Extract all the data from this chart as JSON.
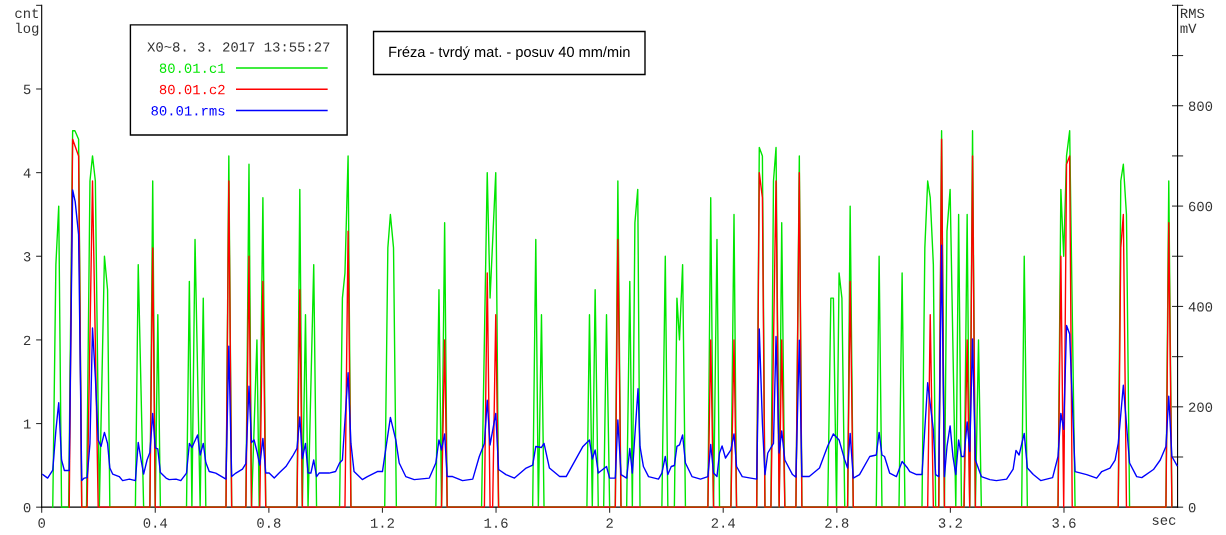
{
  "chart_data": {
    "type": "line",
    "title": "Fréza - tvrdý mat. - posuv 40 mm/min",
    "xlabel": "sec",
    "ylabel": "cnt\nlog",
    "y2label": "RMS\nmV",
    "legend_title": "X0~8. 3. 2017 13:55:27",
    "legend": "top left",
    "grid": false,
    "marker": "none",
    "line_style": "solid",
    "xlim": [
      0,
      4
    ],
    "xticks": [
      0,
      0.4,
      0.8,
      1.2,
      1.6,
      2,
      2.4,
      2.8,
      3.2,
      3.6
    ],
    "ylim": [
      0,
      6
    ],
    "yticks": [
      0,
      1,
      2,
      3,
      4,
      5,
      {
        "value": 6,
        "label": null
      }
    ],
    "y2lim": [
      0,
      1000
    ],
    "y2ticks": [
      0,
      {
        "value": 100,
        "label": null
      },
      200,
      {
        "value": 300,
        "label": null
      },
      400,
      {
        "value": 500,
        "label": null
      },
      600,
      {
        "value": 700,
        "label": null
      },
      800,
      {
        "value": 900,
        "label": null
      },
      {
        "value": 1000,
        "label": null
      }
    ],
    "series": [
      {
        "name": "80.01.c1",
        "color": "#00e600",
        "axis": "y",
        "x": [
          0.039,
          0.05,
          0.06,
          0.07,
          0.095,
          0.109,
          0.117,
          0.13,
          0.141,
          0.158,
          0.17,
          0.179,
          0.189,
          0.203,
          0.221,
          0.232,
          0.24,
          0.33,
          0.34,
          0.359,
          0.381,
          0.391,
          0.4,
          0.409,
          0.418,
          0.51,
          0.52,
          0.529,
          0.54,
          0.558,
          0.569,
          0.578,
          0.649,
          0.659,
          0.669,
          0.719,
          0.73,
          0.739,
          0.758,
          0.766,
          0.779,
          0.789,
          0.899,
          0.909,
          0.918,
          0.929,
          0.938,
          0.958,
          0.968,
          1.049,
          1.059,
          1.068,
          1.079,
          1.089,
          1.208,
          1.219,
          1.228,
          1.239,
          1.249,
          1.388,
          1.399,
          1.408,
          1.419,
          1.428,
          1.549,
          1.569,
          1.579,
          1.599,
          1.609,
          1.729,
          1.74,
          1.749,
          1.76,
          1.769,
          1.92,
          1.929,
          1.939,
          1.949,
          1.96,
          1.979,
          1.989,
          2.0,
          2.02,
          2.029,
          2.04,
          2.06,
          2.071,
          2.08,
          2.089,
          2.099,
          2.107,
          2.184,
          2.196,
          2.205,
          2.228,
          2.237,
          2.246,
          2.257,
          2.267,
          2.346,
          2.356,
          2.366,
          2.378,
          2.387,
          2.408,
          2.427,
          2.438,
          2.447,
          2.518,
          2.527,
          2.538,
          2.547,
          2.568,
          2.577,
          2.586,
          2.597,
          2.606,
          2.617,
          2.656,
          2.668,
          2.677,
          2.768,
          2.779,
          2.788,
          2.799,
          2.808,
          2.818,
          2.828,
          2.838,
          2.847,
          2.858,
          2.939,
          2.949,
          2.959,
          3.019,
          3.03,
          3.04,
          3.1,
          3.11,
          3.12,
          3.129,
          3.14,
          3.148,
          3.159,
          3.169,
          3.179,
          3.188,
          3.199,
          3.219,
          3.229,
          3.239,
          3.248,
          3.259,
          3.268,
          3.278,
          3.288,
          3.299,
          3.309,
          3.451,
          3.46,
          3.471,
          3.579,
          3.589,
          3.599,
          3.609,
          3.62,
          3.639,
          3.791,
          3.8,
          3.809,
          3.82,
          3.831,
          3.948,
          3.959,
          3.969,
          3.98
        ],
        "values": [
          0,
          2.9,
          3.6,
          0,
          0,
          4.5,
          4.5,
          4.4,
          0,
          0,
          3.9,
          4.2,
          3.9,
          0,
          3.0,
          2.6,
          0,
          0,
          2.9,
          0,
          0,
          3.9,
          0,
          2.3,
          0,
          0,
          2.7,
          0,
          3.2,
          0,
          2.5,
          0,
          0,
          4.2,
          0,
          0,
          4.1,
          0,
          2.0,
          0,
          3.7,
          0,
          0,
          3.8,
          0,
          2.3,
          0,
          2.9,
          0,
          0,
          2.5,
          2.8,
          4.2,
          0,
          0,
          3.1,
          3.5,
          3.1,
          0,
          0,
          2.6,
          0,
          3.4,
          0,
          0,
          4.0,
          2.5,
          4.0,
          0,
          0,
          3.2,
          0,
          2.3,
          0,
          0,
          2.3,
          0,
          2.6,
          0,
          0,
          2.3,
          0,
          0,
          3.9,
          0,
          0,
          2.7,
          0,
          3.4,
          3.8,
          0,
          0,
          3.0,
          0,
          0,
          2.5,
          2.0,
          2.9,
          0,
          0,
          3.7,
          0,
          3.2,
          0,
          0,
          0,
          3.5,
          0,
          0,
          4.3,
          4.2,
          0,
          0,
          3.9,
          4.3,
          0,
          3.4,
          0,
          0,
          4.2,
          0,
          0,
          2.5,
          2.5,
          0,
          2.8,
          2.5,
          0,
          0,
          3.6,
          0,
          0,
          3.0,
          0,
          0,
          2.8,
          0,
          0,
          3.1,
          3.9,
          3.7,
          2.9,
          0,
          0,
          4.5,
          0,
          3.3,
          3.8,
          0,
          3.5,
          0,
          0,
          3.5,
          0,
          4.5,
          0,
          2.0,
          0,
          0,
          3.0,
          0,
          0,
          3.8,
          3.0,
          4.2,
          4.5,
          0,
          0,
          3.9,
          4.1,
          3.5,
          0,
          0,
          0,
          3.9,
          0
        ]
      },
      {
        "name": "80.01.c2",
        "color": "#ff0000",
        "axis": "y",
        "x": [
          0.097,
          0.109,
          0.13,
          0.141,
          0.16,
          0.179,
          0.199,
          0.381,
          0.391,
          0.4,
          0.649,
          0.659,
          0.669,
          0.719,
          0.73,
          0.739,
          0.768,
          0.779,
          0.789,
          0.899,
          0.909,
          0.918,
          1.068,
          1.079,
          1.089,
          1.408,
          1.419,
          1.428,
          1.559,
          1.569,
          1.579,
          1.588,
          1.599,
          1.609,
          2.02,
          2.029,
          2.04,
          2.346,
          2.356,
          2.366,
          2.427,
          2.438,
          2.447,
          2.518,
          2.527,
          2.538,
          2.547,
          2.568,
          2.586,
          2.597,
          2.606,
          2.617,
          2.656,
          2.668,
          2.677,
          2.838,
          2.847,
          2.858,
          3.12,
          3.129,
          3.14,
          3.159,
          3.169,
          3.179,
          3.248,
          3.259,
          3.268,
          3.278,
          3.288,
          3.579,
          3.589,
          3.599,
          3.609,
          3.62,
          3.629,
          3.791,
          3.8,
          3.809,
          3.82,
          3.959,
          3.969,
          3.98
        ],
        "values": [
          0,
          4.4,
          4.2,
          0,
          0,
          3.9,
          0,
          0,
          3.1,
          0,
          0,
          3.9,
          0,
          0,
          3.0,
          0,
          0,
          2.7,
          0,
          0,
          2.6,
          0,
          0,
          3.3,
          0,
          0,
          2.0,
          0,
          0,
          2.8,
          0,
          0,
          2.3,
          0,
          0,
          3.2,
          0,
          0,
          2.0,
          0,
          0,
          2.0,
          0,
          0,
          4.0,
          3.7,
          0,
          0,
          3.9,
          0,
          2.0,
          0,
          0,
          4.0,
          0,
          0,
          2.7,
          0,
          0,
          2.3,
          0,
          0,
          4.4,
          0,
          0,
          2.0,
          0,
          4.2,
          0,
          0,
          3.0,
          0,
          4.1,
          4.2,
          0,
          0,
          3.1,
          3.5,
          0,
          0,
          3.4,
          0
        ]
      },
      {
        "name": "80.01.rms",
        "color": "#0000ff",
        "axis": "y2",
        "x": [
          0.004,
          0.021,
          0.039,
          0.05,
          0.06,
          0.07,
          0.08,
          0.097,
          0.109,
          0.118,
          0.13,
          0.141,
          0.15,
          0.16,
          0.17,
          0.179,
          0.189,
          0.199,
          0.209,
          0.221,
          0.232,
          0.24,
          0.25,
          0.273,
          0.285,
          0.309,
          0.33,
          0.34,
          0.35,
          0.359,
          0.371,
          0.381,
          0.391,
          0.4,
          0.409,
          0.418,
          0.438,
          0.449,
          0.473,
          0.49,
          0.51,
          0.52,
          0.529,
          0.549,
          0.558,
          0.569,
          0.578,
          0.59,
          0.613,
          0.649,
          0.659,
          0.669,
          0.684,
          0.707,
          0.719,
          0.73,
          0.739,
          0.748,
          0.758,
          0.768,
          0.779,
          0.789,
          0.801,
          0.819,
          0.836,
          0.86,
          0.883,
          0.899,
          0.909,
          0.918,
          0.929,
          0.938,
          0.948,
          0.958,
          0.968,
          0.977,
          1.012,
          1.035,
          1.049,
          1.059,
          1.079,
          1.089,
          1.1,
          1.129,
          1.147,
          1.182,
          1.2,
          1.228,
          1.247,
          1.259,
          1.282,
          1.312,
          1.365,
          1.388,
          1.399,
          1.408,
          1.419,
          1.428,
          1.447,
          1.482,
          1.518,
          1.541,
          1.559,
          1.569,
          1.579,
          1.599,
          1.609,
          1.635,
          1.665,
          1.706,
          1.729,
          1.74,
          1.76,
          1.769,
          1.788,
          1.824,
          1.847,
          1.906,
          1.929,
          1.939,
          1.949,
          1.96,
          1.989,
          2.0,
          2.02,
          2.029,
          2.04,
          2.06,
          2.071,
          2.08,
          2.1,
          2.107,
          2.119,
          2.137,
          2.172,
          2.184,
          2.196,
          2.205,
          2.217,
          2.228,
          2.237,
          2.246,
          2.257,
          2.267,
          2.29,
          2.32,
          2.346,
          2.356,
          2.366,
          2.378,
          2.387,
          2.396,
          2.408,
          2.427,
          2.438,
          2.447,
          2.467,
          2.497,
          2.518,
          2.527,
          2.538,
          2.547,
          2.557,
          2.577,
          2.586,
          2.597,
          2.606,
          2.617,
          2.644,
          2.656,
          2.668,
          2.677,
          2.703,
          2.739,
          2.768,
          2.788,
          2.808,
          2.828,
          2.838,
          2.847,
          2.858,
          2.88,
          2.916,
          2.939,
          2.949,
          2.959,
          2.968,
          2.986,
          3.01,
          3.03,
          3.049,
          3.057,
          3.081,
          3.1,
          3.12,
          3.14,
          3.148,
          3.159,
          3.169,
          3.179,
          3.188,
          3.199,
          3.209,
          3.219,
          3.229,
          3.239,
          3.248,
          3.259,
          3.268,
          3.278,
          3.288,
          3.309,
          3.339,
          3.362,
          3.398,
          3.421,
          3.431,
          3.442,
          3.46,
          3.471,
          3.492,
          3.518,
          3.56,
          3.579,
          3.589,
          3.599,
          3.609,
          3.62,
          3.639,
          3.68,
          3.715,
          3.733,
          3.762,
          3.78,
          3.791,
          3.809,
          3.831,
          3.856,
          3.874,
          3.915,
          3.939,
          3.959,
          3.969,
          3.98,
          3.998
        ],
        "values": [
          65,
          58,
          74,
          153,
          208,
          94,
          73,
          73,
          632,
          609,
          543,
          53,
          58,
          59,
          127,
          357,
          259,
          134,
          121,
          149,
          127,
          78,
          66,
          61,
          53,
          56,
          53,
          129,
          94,
          66,
          94,
          109,
          187,
          118,
          116,
          69,
          58,
          55,
          56,
          53,
          68,
          127,
          119,
          144,
          104,
          127,
          89,
          71,
          68,
          56,
          321,
          61,
          68,
          76,
          87,
          241,
          129,
          134,
          111,
          84,
          137,
          68,
          68,
          58,
          68,
          81,
          101,
          117,
          180,
          97,
          127,
          68,
          68,
          94,
          61,
          68,
          68,
          71,
          88,
          94,
          268,
          127,
          71,
          55,
          61,
          71,
          71,
          179,
          134,
          88,
          61,
          55,
          58,
          88,
          134,
          114,
          146,
          61,
          61,
          53,
          56,
          101,
          127,
          213,
          124,
          187,
          75,
          65,
          58,
          78,
          84,
          121,
          119,
          127,
          78,
          61,
          61,
          121,
          134,
          96,
          114,
          68,
          81,
          58,
          58,
          174,
          65,
          58,
          117,
          68,
          236,
          121,
          81,
          61,
          56,
          68,
          101,
          65,
          81,
          83,
          121,
          124,
          144,
          88,
          61,
          56,
          61,
          125,
          68,
          61,
          108,
          122,
          98,
          114,
          146,
          81,
          61,
          58,
          56,
          355,
          167,
          65,
          108,
          127,
          340,
          108,
          152,
          94,
          65,
          60,
          333,
          61,
          61,
          78,
          122,
          146,
          134,
          94,
          78,
          147,
          58,
          65,
          101,
          104,
          149,
          104,
          101,
          68,
          61,
          91,
          78,
          71,
          65,
          65,
          248,
          154,
          65,
          61,
          522,
          61,
          121,
          162,
          101,
          65,
          134,
          101,
          101,
          170,
          111,
          335,
          94,
          61,
          55,
          53,
          56,
          76,
          113,
          104,
          147,
          78,
          65,
          53,
          59,
          101,
          187,
          155,
          362,
          345,
          71,
          65,
          58,
          71,
          78,
          94,
          127,
          243,
          88,
          61,
          59,
          75,
          94,
          121,
          221,
          101,
          83
        ]
      }
    ]
  }
}
